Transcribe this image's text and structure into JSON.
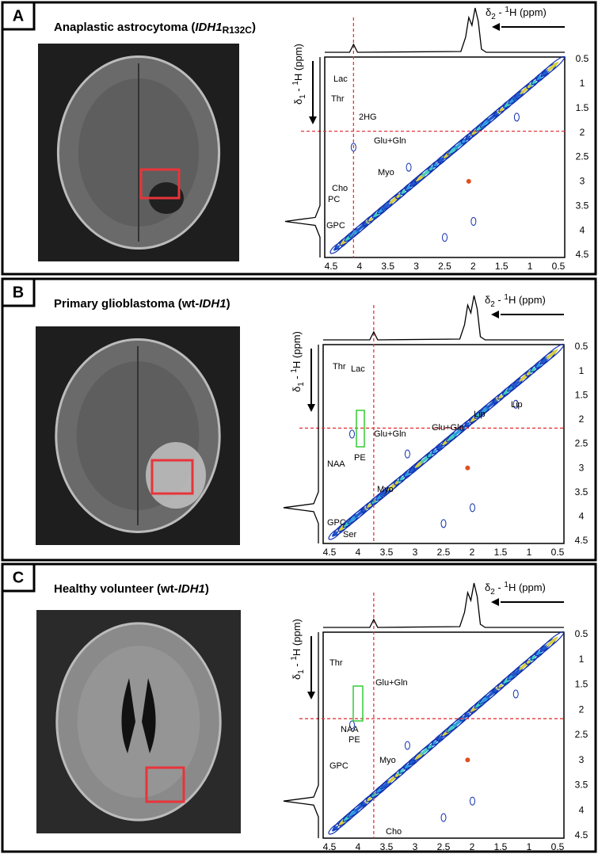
{
  "axes": {
    "x_label": {
      "delta": "δ",
      "delta_sub": "2",
      "dash": " - ",
      "iso": "1",
      "rest": "H  (ppm)"
    },
    "y_label": {
      "delta": "δ",
      "delta_sub": "1",
      "dash": " - ",
      "iso": "1",
      "rest": "H  (ppm)"
    },
    "xticks": [
      "4.5",
      "4",
      "3.5",
      "3",
      "2.5",
      "2",
      "1.5",
      "1",
      "0.5"
    ],
    "yticks": [
      "0.5",
      "1",
      "1.5",
      "2",
      "2.5",
      "3",
      "3.5",
      "4",
      "4.5"
    ]
  },
  "panels": [
    {
      "letter": "A",
      "title": {
        "prefix": "Anaplastic astrocytoma (",
        "gene": "IDH1",
        "subscript": "R132C",
        "suffix": ")"
      },
      "peaks": [
        "Lac",
        "Thr",
        "2HG",
        "Glu+Gln",
        "Myo",
        "Cho",
        "PC",
        "GPC"
      ]
    },
    {
      "letter": "B",
      "title": {
        "prefix": "Primary glioblastoma (wt-",
        "gene": "IDH1",
        "suffix": ")"
      },
      "peaks": [
        "Thr",
        "Lac",
        "Glu+Gln",
        "Glu+Gln",
        "Lip",
        "Lip",
        "NAA",
        "PE",
        "Myo",
        "GPC",
        "Ser"
      ]
    },
    {
      "letter": "C",
      "title": {
        "prefix": "Healthy volunteer (wt-",
        "gene": "IDH1",
        "suffix": ")"
      },
      "peaks": [
        "Thr",
        "Glu+Gln",
        "NAA",
        "PE",
        "Myo",
        "GPC",
        "Cho"
      ]
    }
  ]
}
